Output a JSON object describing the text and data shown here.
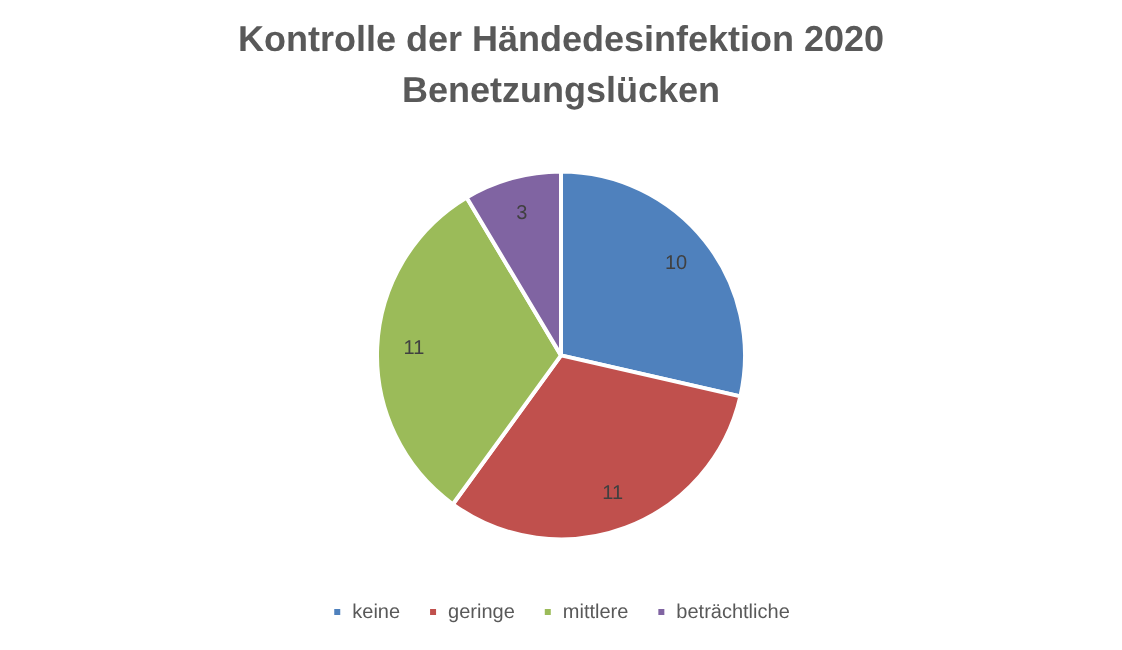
{
  "chart_data": {
    "type": "pie",
    "title": "Kontrolle der Händedesinfektion 2020",
    "subtitle": "Benetzungslücken",
    "categories": [
      "keine",
      "geringe",
      "mittlere",
      "beträchtliche"
    ],
    "values": [
      10,
      11,
      11,
      3
    ],
    "colors": [
      "#4f81bd",
      "#c0504d",
      "#9bbb59",
      "#8064a2"
    ],
    "data_labels": true,
    "legend": "bottom"
  }
}
